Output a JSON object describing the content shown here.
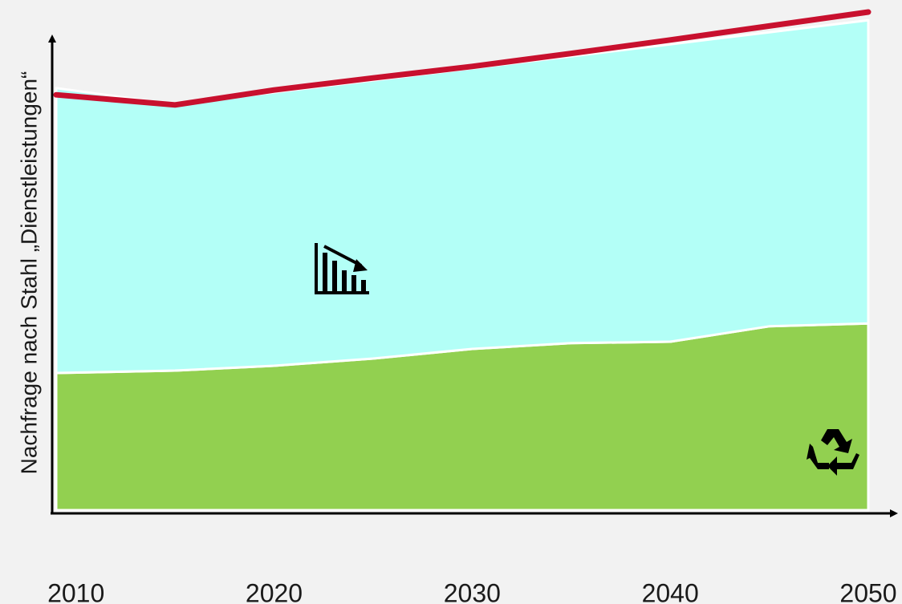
{
  "chart_data": {
    "type": "stacked-area",
    "y_label": "Nachfrage nach Stahl „Dienstleistungen“",
    "x": [
      2009,
      2015,
      2020,
      2025,
      2030,
      2035,
      2040,
      2045,
      2050
    ],
    "xlim": [
      2009,
      2050
    ],
    "xticks": [
      2010,
      2020,
      2030,
      2040,
      2050
    ],
    "ylim": [
      0,
      105
    ],
    "series": [
      {
        "color": "#92d050",
        "values": [
          28.5,
          29,
          30,
          31.5,
          33.5,
          34.7,
          35,
          38.2,
          38.8
        ]
      },
      {
        "color": "#b3fff7",
        "values": [
          59.2,
          55.3,
          56.8,
          57.8,
          58.3,
          59.6,
          61.8,
          61.1,
          63
        ]
      }
    ],
    "line": {
      "color": "#c8102e",
      "values": [
        86.3,
        84.2,
        87.3,
        89.8,
        92.2,
        94.9,
        97.7,
        100.6,
        103.5
      ]
    }
  }
}
